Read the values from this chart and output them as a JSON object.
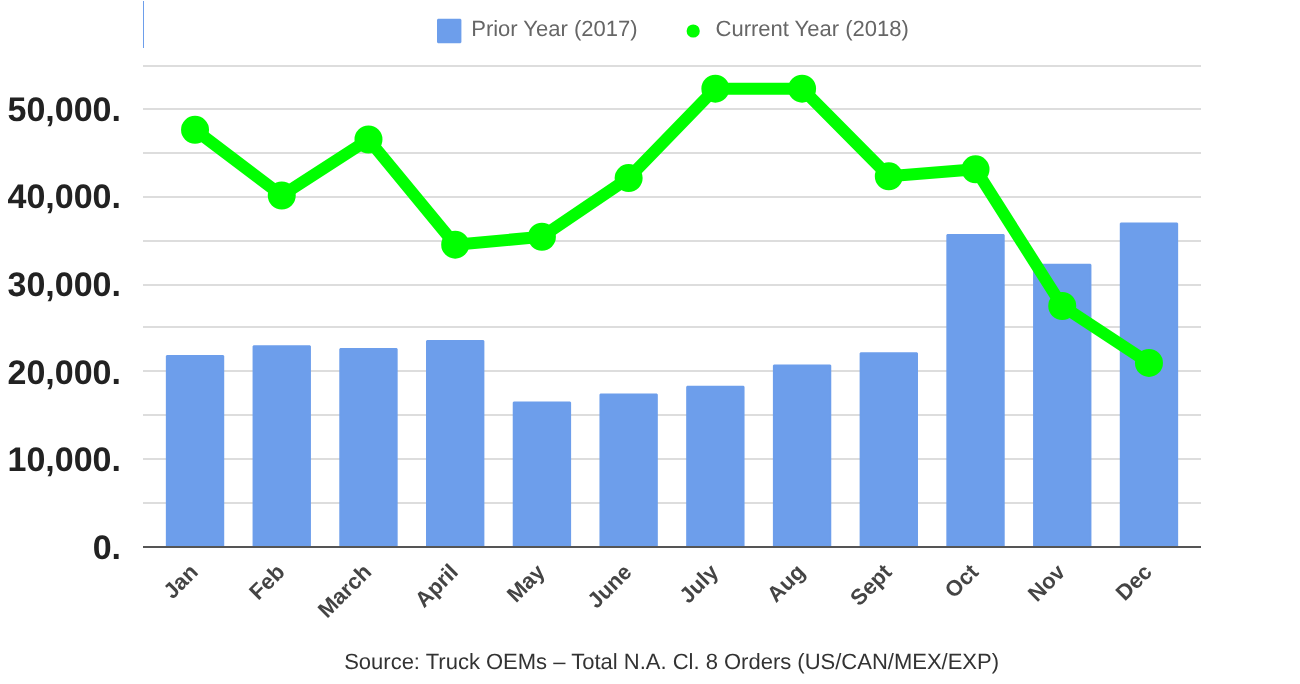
{
  "chart_data": {
    "type": "bar",
    "categories": [
      "Jan",
      "Feb",
      "March",
      "April",
      "May",
      "June",
      "July",
      "Aug",
      "Sept",
      "Oct",
      "Nov",
      "Dec"
    ],
    "series": [
      {
        "name": "Prior Year (2017)",
        "color": "#6d9eeb",
        "values": [
          21800,
          22900,
          22600,
          23500,
          16500,
          17400,
          18300,
          20700,
          22100,
          35600,
          32200,
          36900
        ]
      },
      {
        "name": "Current Year (2018)",
        "type": "line",
        "color": "#00ff00",
        "marker": "circle",
        "values": [
          47600,
          40100,
          46500,
          34500,
          35400,
          42100,
          52300,
          52300,
          42300,
          43100,
          27500,
          21000
        ]
      }
    ],
    "ylim": [
      0,
      55000
    ],
    "yticks": [
      {
        "value": 0,
        "label": "0."
      },
      {
        "value": 5000,
        "label": null
      },
      {
        "value": 10000,
        "label": "10,000."
      },
      {
        "value": 15000,
        "label": null
      },
      {
        "value": 20000,
        "label": "20,000."
      },
      {
        "value": 25000,
        "label": null
      },
      {
        "value": 30000,
        "label": "30,000."
      },
      {
        "value": 35000,
        "label": null
      },
      {
        "value": 40000,
        "label": "40,000."
      },
      {
        "value": 45000,
        "label": null
      },
      {
        "value": 50000,
        "label": "50,000."
      },
      {
        "value": 55000,
        "label": null
      }
    ],
    "grid": "y",
    "legend": "top",
    "annotations": [
      "Source: Truck OEMs – Total N.A. Cl. 8 Orders (US/CAN/MEX/EXP)"
    ]
  }
}
